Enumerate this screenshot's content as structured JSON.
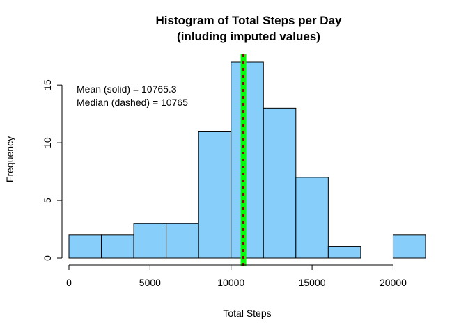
{
  "chart_data": {
    "type": "bar",
    "subtype": "histogram",
    "title": "Histogram of Total Steps per Day",
    "subtitle": "(inluding imputed values)",
    "xlabel": "Total Steps",
    "ylabel": "Frequency",
    "bin_edges": [
      0,
      2000,
      4000,
      6000,
      8000,
      10000,
      12000,
      14000,
      16000,
      18000,
      20000,
      22000
    ],
    "values": [
      2,
      2,
      3,
      3,
      11,
      17,
      13,
      7,
      1,
      0,
      2
    ],
    "xlim": [
      0,
      22000
    ],
    "ylim": [
      0,
      17
    ],
    "x_ticks": [
      0,
      5000,
      10000,
      15000,
      20000
    ],
    "y_ticks": [
      0,
      5,
      10,
      15
    ],
    "bar_color": "#87CEFA",
    "bar_border": "#000000",
    "grid": false,
    "mean": 10765.3,
    "median": 10765,
    "mean_line_color": "#00FF00",
    "median_line_color": "#8B0000",
    "annotations": [
      "Mean (solid) = 10765.3",
      "Median (dashed) = 10765"
    ]
  }
}
